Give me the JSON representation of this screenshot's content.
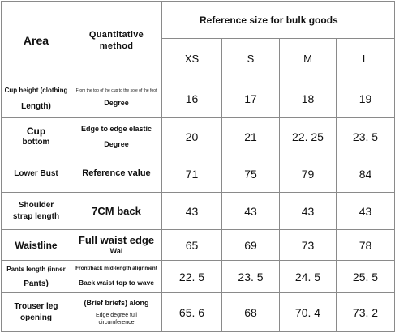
{
  "header": {
    "area": "Area",
    "method": "Quantitative method",
    "reference": "Reference size for bulk goods",
    "sizes": [
      "XS",
      "S",
      "M",
      "L"
    ]
  },
  "rows": [
    {
      "area_line1": "Cup height (clothing",
      "area_line2": "Length)",
      "method_small": "From the top of the cup to the sole of the foot",
      "method_main": "Degree",
      "values": [
        "16",
        "17",
        "18",
        "19"
      ]
    },
    {
      "area_line1": "Cup",
      "area_line2": "bottom",
      "method_line1": "Edge to edge elastic",
      "method_main": "Degree",
      "values": [
        "20",
        "21",
        "22. 25",
        "23. 5"
      ]
    },
    {
      "area_line1": "Lower Bust",
      "method_main": "Reference value",
      "values": [
        "71",
        "75",
        "79",
        "84"
      ]
    },
    {
      "area_line1": "Shoulder",
      "area_line2": "strap length",
      "method_main": "7CM back",
      "values": [
        "43",
        "43",
        "43",
        "43"
      ]
    },
    {
      "area_line1": "Waistline",
      "method_line1": "Full waist edge",
      "method_main": "Wai",
      "values": [
        "65",
        "69",
        "73",
        "78"
      ]
    },
    {
      "area_line1": "Pants length (inner",
      "area_line2": "Pants)",
      "method_line1": "Front/back mid-length alignment",
      "method_main": "Back waist top to wave",
      "values": [
        "22. 5",
        "23. 5",
        "24. 5",
        "25. 5"
      ]
    },
    {
      "area_line1": "Trouser leg",
      "area_line2": "opening",
      "method_line1": "(Brief briefs) along",
      "method_line2": "Edge degree full",
      "method_line3": "circumference",
      "values": [
        "65. 6",
        "68",
        "70. 4",
        "73. 2"
      ]
    }
  ]
}
